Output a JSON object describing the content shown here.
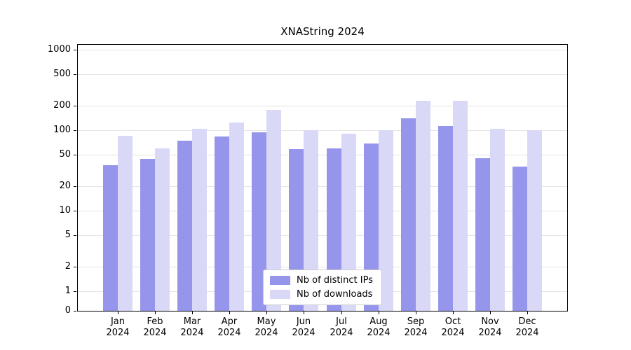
{
  "chart_data": {
    "type": "bar",
    "title": "XNAString 2024",
    "categories": [
      "Jan",
      "Feb",
      "Mar",
      "Apr",
      "May",
      "Jun",
      "Jul",
      "Aug",
      "Sep",
      "Oct",
      "Nov",
      "Dec"
    ],
    "year_label": "2024",
    "series": [
      {
        "name": "Nb of distinct IPs",
        "color": "#9595eb",
        "values": [
          37,
          44,
          74,
          83,
          95,
          58,
          60,
          68,
          140,
          112,
          45,
          35
        ]
      },
      {
        "name": "Nb of downloads",
        "color": "#d9d9f7",
        "values": [
          85,
          60,
          105,
          125,
          180,
          100,
          90,
          100,
          230,
          230,
          105,
          100
        ]
      }
    ],
    "yscale": "log",
    "yticks": [
      0,
      1,
      2,
      5,
      10,
      20,
      50,
      100,
      200,
      500,
      1000
    ],
    "ylim": [
      0,
      1000
    ],
    "grid": true,
    "legend_position": "bottom-center",
    "colors": {
      "grid": "#e4e4e4",
      "axis": "#000000",
      "legend_border": "#cccccc"
    }
  }
}
